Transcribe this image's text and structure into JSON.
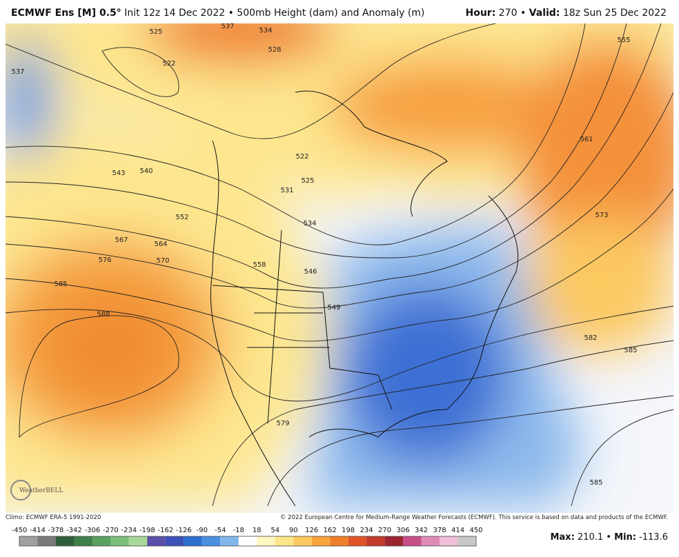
{
  "header": {
    "title": "ECMWF Ens [M] 0.5°",
    "subtitle": "Init 12z 14 Dec 2022 • 500mb Height (dam) and Anomaly (m)",
    "hour_label": "Hour:",
    "hour": "270",
    "separator": "•",
    "valid_label": "Valid:",
    "valid": "18z Sun 25 Dec 2022"
  },
  "map": {
    "contour_labels": [
      "525",
      "537",
      "534",
      "528",
      "522",
      "537",
      "543",
      "540",
      "552",
      "567",
      "564",
      "576",
      "570",
      "585",
      "588",
      "522",
      "525",
      "531",
      "534",
      "546",
      "549",
      "558",
      "561",
      "573",
      "555",
      "582",
      "585",
      "579",
      "585"
    ],
    "logo": "WeatherBELL"
  },
  "footer": {
    "climo": "Climo: ECMWF ERA-5 1991-2020",
    "copyright": "© 2022 European Centre for Medium-Range Weather Forecasts (ECMWF). This service is based on data and products of the ECMWF.",
    "max_label": "Max:",
    "max": "210.1",
    "separator": "•",
    "min_label": "Min:",
    "min": "-113.6"
  },
  "colorbar": {
    "ticks": [
      -450,
      -414,
      -378,
      -342,
      -306,
      -270,
      -234,
      -198,
      -162,
      -126,
      -90,
      -54,
      -18,
      18,
      54,
      90,
      126,
      162,
      198,
      234,
      270,
      306,
      342,
      378,
      414,
      450
    ],
    "colors": [
      "#a0a0a0",
      "#7a7a7a",
      "#2f5f3a",
      "#3f7f4a",
      "#5aa060",
      "#7cc07a",
      "#a8d898",
      "#5a4fa8",
      "#3d52b8",
      "#2f6fd0",
      "#4a8fe0",
      "#82b6ec",
      "#fefefe",
      "#fff6c0",
      "#fde58a",
      "#fcc860",
      "#f9a53f",
      "#f07f2a",
      "#e0542a",
      "#c23a2c",
      "#9c2630",
      "#c8508a",
      "#e08ab8",
      "#f0c0d8",
      "#c8c8c8"
    ]
  }
}
